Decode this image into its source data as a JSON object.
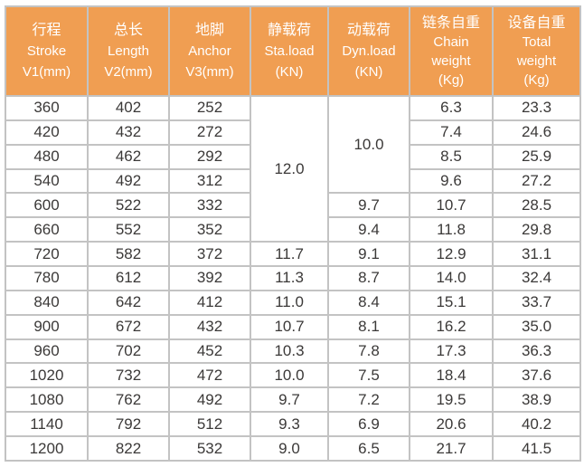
{
  "colors": {
    "header_bg": "#f09e52",
    "header_text": "#ffffff",
    "border": "#c3c3c3",
    "cell_bg": "#ffffff",
    "text": "#3b3938"
  },
  "table": {
    "keys": [
      "stroke",
      "length",
      "anchor",
      "sta-load",
      "dyn-load",
      "chain-weight",
      "total-weight"
    ],
    "headers": [
      [
        "行程",
        "Stroke",
        "V1(mm)"
      ],
      [
        "总长",
        "Length",
        "V2(mm)"
      ],
      [
        "地脚",
        "Anchor",
        "V3(mm)"
      ],
      [
        "静载荷",
        "Sta.load",
        "(KN)"
      ],
      [
        "动载荷",
        "Dyn.load",
        "(KN)"
      ],
      [
        "链条自重",
        "Chain",
        "weight",
        "(Kg)"
      ],
      [
        "设备自重",
        "Total",
        "weight",
        "(Kg)"
      ]
    ],
    "merges": [
      {
        "col": 3,
        "row": 0,
        "rowspan": 6,
        "value": "12.0"
      },
      {
        "col": 4,
        "row": 0,
        "rowspan": 4,
        "value": "10.0"
      }
    ],
    "rows": [
      [
        "360",
        "402",
        "252",
        null,
        null,
        "6.3",
        "23.3"
      ],
      [
        "420",
        "432",
        "272",
        null,
        null,
        "7.4",
        "24.6"
      ],
      [
        "480",
        "462",
        "292",
        null,
        null,
        "8.5",
        "25.9"
      ],
      [
        "540",
        "492",
        "312",
        null,
        null,
        "9.6",
        "27.2"
      ],
      [
        "600",
        "522",
        "332",
        null,
        "9.7",
        "10.7",
        "28.5"
      ],
      [
        "660",
        "552",
        "352",
        null,
        "9.4",
        "11.8",
        "29.8"
      ],
      [
        "720",
        "582",
        "372",
        "11.7",
        "9.1",
        "12.9",
        "31.1"
      ],
      [
        "780",
        "612",
        "392",
        "11.3",
        "8.7",
        "14.0",
        "32.4"
      ],
      [
        "840",
        "642",
        "412",
        "11.0",
        "8.4",
        "15.1",
        "33.7"
      ],
      [
        "900",
        "672",
        "432",
        "10.7",
        "8.1",
        "16.2",
        "35.0"
      ],
      [
        "960",
        "702",
        "452",
        "10.3",
        "7.8",
        "17.3",
        "36.3"
      ],
      [
        "1020",
        "732",
        "472",
        "10.0",
        "7.5",
        "18.4",
        "37.6"
      ],
      [
        "1080",
        "762",
        "492",
        "9.7",
        "7.2",
        "19.5",
        "38.9"
      ],
      [
        "1140",
        "792",
        "512",
        "9.3",
        "6.9",
        "20.6",
        "40.2"
      ],
      [
        "1200",
        "822",
        "532",
        "9.0",
        "6.5",
        "21.7",
        "41.5"
      ]
    ]
  }
}
